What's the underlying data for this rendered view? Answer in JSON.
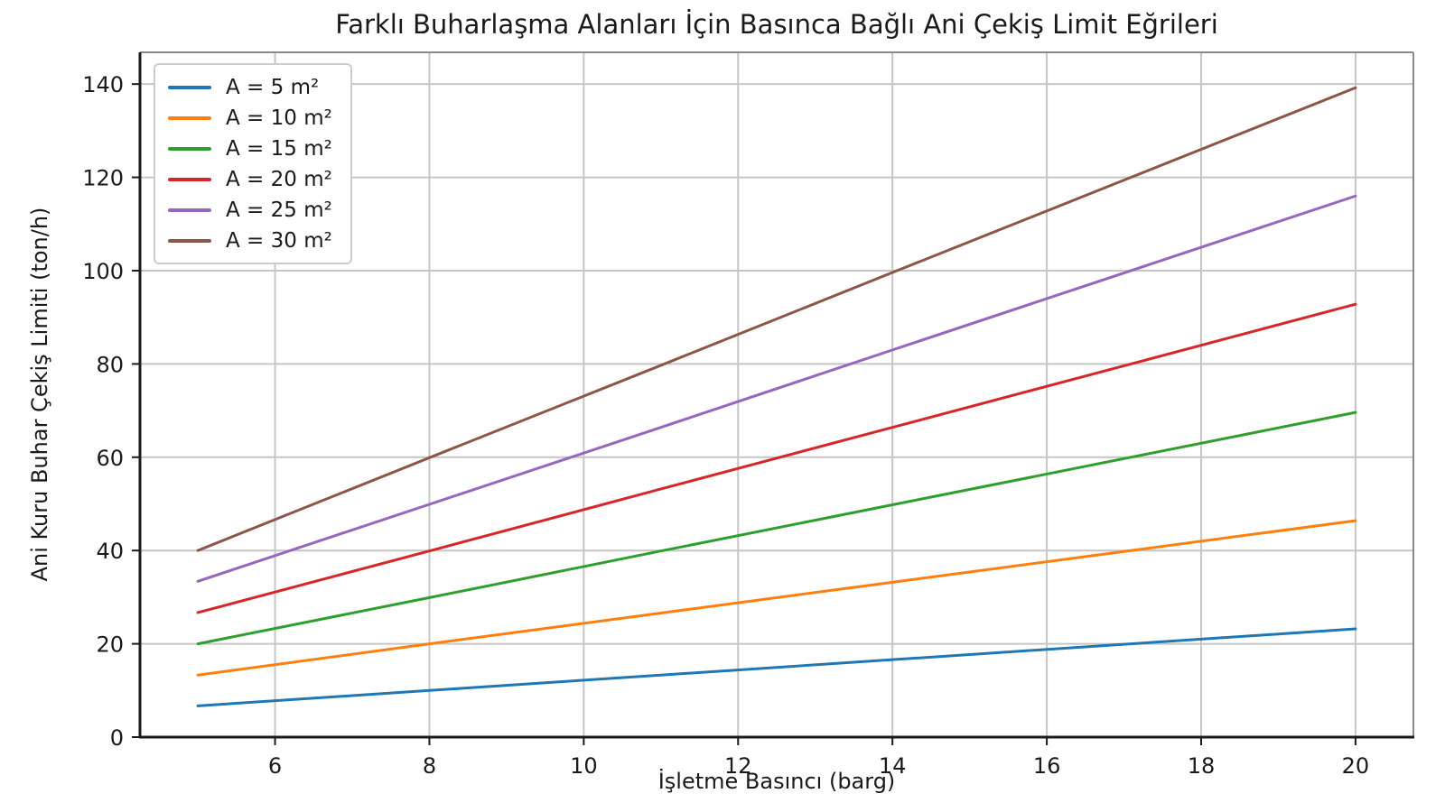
{
  "chart_data": {
    "type": "line",
    "title": "Farklı Buharlaşma Alanları İçin Basınca Bağlı Ani Çekiş Limit Eğrileri",
    "xlabel": "İşletme Basıncı (barg)",
    "ylabel": "Ani Kuru Buhar Çekiş Limiti (ton/h)",
    "x": [
      5,
      8,
      11,
      14,
      17,
      20
    ],
    "series": [
      {
        "name": "A = 5 m²",
        "color": "#1f77b4",
        "values": [
          6.7,
          10.0,
          13.3,
          16.6,
          19.9,
          23.2
        ]
      },
      {
        "name": "A = 10 m²",
        "color": "#ff7f0e",
        "values": [
          13.3,
          20.0,
          26.6,
          33.2,
          39.8,
          46.4
        ]
      },
      {
        "name": "A = 15 m²",
        "color": "#2ca02c",
        "values": [
          20.0,
          29.9,
          39.9,
          49.8,
          59.7,
          69.6
        ]
      },
      {
        "name": "A = 20 m²",
        "color": "#d62728",
        "values": [
          26.7,
          39.9,
          53.2,
          66.4,
          79.6,
          92.8
        ]
      },
      {
        "name": "A = 25 m²",
        "color": "#9467bd",
        "values": [
          33.4,
          49.9,
          66.4,
          83.0,
          99.5,
          116.0
        ]
      },
      {
        "name": "A = 30 m²",
        "color": "#8c564b",
        "values": [
          40.0,
          59.9,
          79.7,
          99.6,
          119.4,
          139.2
        ]
      }
    ],
    "xticks": [
      6,
      8,
      10,
      12,
      14,
      16,
      18,
      20
    ],
    "yticks": [
      0,
      20,
      40,
      60,
      80,
      100,
      120,
      140
    ],
    "xlim": [
      4.25,
      20.75
    ],
    "ylim": [
      0,
      146.8
    ],
    "grid": true,
    "legend_position": "upper left",
    "grid_color": "#c6c6c6",
    "spine_color": "#1a1a1a",
    "minor_spine_color": "#8a8a8a"
  }
}
